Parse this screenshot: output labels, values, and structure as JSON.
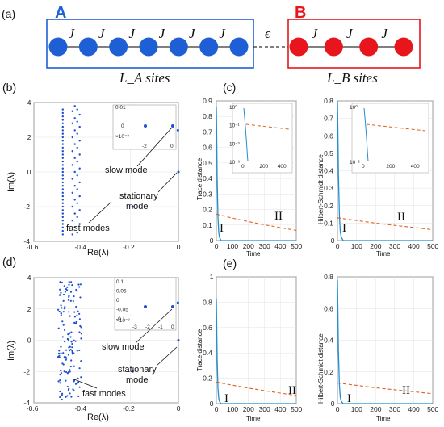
{
  "schematic": {
    "panel_label": "(a)",
    "chain_a": {
      "label": "A",
      "color": "#1f5fd6",
      "sites": 7,
      "coupling": "J",
      "coupling_count": 6,
      "size_label": "L_A sites"
    },
    "chain_b": {
      "label": "B",
      "color": "#e8161c",
      "sites": 4,
      "coupling": "J",
      "coupling_count": 3,
      "size_label": "L_B sites"
    },
    "link_label": "ϵ"
  },
  "chart_data": [
    {
      "id": "b",
      "panel_label": "(b)",
      "type": "scatter",
      "xlabel": "Re(λ)",
      "ylabel": "Im(λ)",
      "xlim": [
        -0.6,
        0
      ],
      "ylim": [
        -4,
        4
      ],
      "xticks": [
        "-0.6",
        "-0.4",
        "-0.2",
        "0"
      ],
      "yticks": [
        "-4",
        "-2",
        "0",
        "2",
        "4"
      ],
      "series": [
        {
          "values_desc": "column1",
          "x": -0.48,
          "y": [
            -3.6,
            -3.4,
            -3.2,
            -3.0,
            -2.8,
            -2.6,
            -2.4,
            -2.2,
            -2.0,
            -1.8,
            -1.6,
            -1.4,
            -1.2,
            -1.0,
            -0.8,
            -0.6,
            -0.4,
            -0.2,
            0.0,
            0.2,
            0.4,
            0.6,
            0.8,
            1.0,
            1.2,
            1.4,
            1.6,
            1.8,
            2.0,
            2.2,
            2.4,
            2.6,
            2.8,
            3.0,
            3.2,
            3.4,
            3.6
          ]
        },
        {
          "values_desc": "column2",
          "points": [
            [
              -0.43,
              3.8
            ],
            [
              -0.42,
              3.6
            ],
            [
              -0.44,
              3.5
            ],
            [
              -0.41,
              3.3
            ],
            [
              -0.43,
              3.1
            ],
            [
              -0.42,
              2.9
            ],
            [
              -0.44,
              2.8
            ],
            [
              -0.41,
              2.6
            ],
            [
              -0.43,
              2.4
            ],
            [
              -0.42,
              2.2
            ],
            [
              -0.44,
              2.0
            ],
            [
              -0.41,
              1.8
            ],
            [
              -0.43,
              1.6
            ],
            [
              -0.42,
              1.4
            ],
            [
              -0.44,
              1.2
            ],
            [
              -0.41,
              1.0
            ],
            [
              -0.43,
              0.8
            ],
            [
              -0.42,
              0.6
            ],
            [
              -0.44,
              0.4
            ],
            [
              -0.41,
              0.2
            ],
            [
              -0.43,
              0.0
            ],
            [
              -0.42,
              -0.2
            ],
            [
              -0.44,
              -0.4
            ],
            [
              -0.41,
              -0.6
            ],
            [
              -0.43,
              -0.8
            ],
            [
              -0.42,
              -1.0
            ],
            [
              -0.44,
              -1.2
            ],
            [
              -0.41,
              -1.4
            ],
            [
              -0.43,
              -1.6
            ],
            [
              -0.42,
              -1.8
            ],
            [
              -0.44,
              -2.0
            ],
            [
              -0.41,
              -2.2
            ],
            [
              -0.43,
              -2.4
            ],
            [
              -0.42,
              -2.6
            ],
            [
              -0.44,
              -2.8
            ],
            [
              -0.41,
              -3.0
            ],
            [
              -0.43,
              -3.2
            ],
            [
              -0.42,
              -3.5
            ],
            [
              -0.44,
              -3.6
            ]
          ]
        },
        {
          "values_desc": "slow/stationary",
          "points": [
            [
              -0.002,
              2.4
            ],
            [
              0,
              0
            ],
            [
              -0.19,
              -2.0
            ],
            [
              -0.19,
              2.0
            ]
          ]
        }
      ],
      "inset": {
        "xlim": [
          -0.003,
          0.0005
        ],
        "ylim": [
          -0.01,
          0.01
        ],
        "xticks": [
          "-2",
          "0"
        ],
        "yticks": [
          "0",
          "0.01"
        ],
        "xscale_label": "×10⁻³",
        "points": [
          [
            -0.002,
            0.0
          ],
          [
            0,
            0.0
          ]
        ]
      },
      "annotations": [
        "slow mode",
        "stationary mode",
        "fast modes"
      ]
    },
    {
      "id": "c-left",
      "panel_label": "(c)",
      "type": "line",
      "xlabel": "Time",
      "ylabel": "Trace distance",
      "xlim": [
        0,
        500
      ],
      "ylim": [
        0,
        0.9
      ],
      "xticks": [
        "0",
        "100",
        "200",
        "300",
        "400",
        "500"
      ],
      "yticks": [
        "0",
        "0.1",
        "0.2",
        "0.3",
        "0.4",
        "0.5",
        "0.6",
        "0.7",
        "0.8",
        "0.9"
      ],
      "series": [
        {
          "label": "I",
          "color": "#1f8fd0",
          "x": [
            0,
            2,
            5,
            10,
            15,
            20,
            30,
            500
          ],
          "y": [
            0.86,
            0.7,
            0.4,
            0.15,
            0.05,
            0.02,
            0.0,
            0.0
          ]
        },
        {
          "label": "II",
          "color": "#e06020",
          "x": [
            0,
            100,
            200,
            300,
            400,
            500
          ],
          "y": [
            0.17,
            0.145,
            0.122,
            0.102,
            0.083,
            0.065
          ]
        }
      ],
      "inset": {
        "yscale": "log",
        "xlim": [
          0,
          500
        ],
        "ylim": [
          0.001,
          1
        ],
        "xticks": [
          "0",
          "200",
          "400"
        ],
        "yticks": [
          "10⁰",
          "10⁻¹",
          "10⁻²",
          "10⁻³"
        ]
      },
      "annotations": [
        "I",
        "II"
      ]
    },
    {
      "id": "c-right",
      "type": "line",
      "xlabel": "Time",
      "ylabel": "Hilbert-Schmidt distance",
      "xlim": [
        0,
        500
      ],
      "ylim": [
        0,
        0.8
      ],
      "xticks": [
        "0",
        "100",
        "200",
        "300",
        "400",
        "500"
      ],
      "yticks": [
        "0",
        "0.1",
        "0.2",
        "0.3",
        "0.4",
        "0.5",
        "0.6",
        "0.7",
        "0.8"
      ],
      "series": [
        {
          "label": "I",
          "color": "#1f8fd0",
          "x": [
            0,
            2,
            5,
            10,
            15,
            20,
            30,
            500
          ],
          "y": [
            0.8,
            0.65,
            0.38,
            0.15,
            0.05,
            0.02,
            0.0,
            0.0
          ]
        },
        {
          "label": "II",
          "color": "#e06020",
          "x": [
            0,
            100,
            200,
            300,
            400,
            500
          ],
          "y": [
            0.13,
            0.115,
            0.1,
            0.087,
            0.075,
            0.062
          ]
        }
      ],
      "inset": {
        "yscale": "log",
        "xlim": [
          0,
          500
        ],
        "ylim": [
          0.005,
          1
        ],
        "xticks": [
          "0",
          "200",
          "400"
        ],
        "yticks": [
          "10⁰",
          "10⁻²"
        ]
      },
      "annotations": [
        "I",
        "II"
      ]
    },
    {
      "id": "d",
      "panel_label": "(d)",
      "type": "scatter",
      "xlabel": "Re(λ)",
      "ylabel": "Im(λ)",
      "xlim": [
        -0.6,
        0
      ],
      "ylim": [
        -4,
        4
      ],
      "xticks": [
        "-0.6",
        "-0.4",
        "-0.2",
        "0"
      ],
      "yticks": [
        "-4",
        "-2",
        "0",
        "2",
        "4"
      ],
      "inset": {
        "xlim": [
          -0.0035,
          0.0005
        ],
        "ylim": [
          -0.1,
          0.1
        ],
        "xticks": [
          "-3",
          "-2",
          "-1",
          "0"
        ],
        "yticks": [
          "-0.1",
          "-0.05",
          "0",
          "0.05",
          "0.1"
        ],
        "xscale_label": "×10⁻³",
        "points": [
          [
            -0.002,
            0.0
          ],
          [
            0,
            0.0
          ]
        ]
      },
      "annotations": [
        "slow mode",
        "stationary mode",
        "fast modes"
      ]
    },
    {
      "id": "e-left",
      "panel_label": "(e)",
      "type": "line",
      "xlabel": "Time",
      "ylabel": "Trace distance",
      "xlim": [
        0,
        500
      ],
      "ylim": [
        0,
        1
      ],
      "xticks": [
        "0",
        "100",
        "200",
        "300",
        "400",
        "500"
      ],
      "yticks": [
        "0",
        "0.2",
        "0.4",
        "0.6",
        "0.8",
        "1"
      ],
      "series": [
        {
          "label": "I",
          "color": "#1f8fd0",
          "x": [
            0,
            2,
            5,
            10,
            15,
            20,
            30,
            500
          ],
          "y": [
            0.83,
            0.65,
            0.35,
            0.12,
            0.04,
            0.015,
            0.0,
            0.0
          ]
        },
        {
          "label": "II",
          "color": "#e06020",
          "x": [
            0,
            100,
            200,
            300,
            400,
            500
          ],
          "y": [
            0.17,
            0.145,
            0.122,
            0.102,
            0.083,
            0.065
          ]
        }
      ],
      "annotations": [
        "I",
        "II"
      ]
    },
    {
      "id": "e-right",
      "type": "line",
      "xlabel": "Time",
      "ylabel": "Hilbert-Schmidt distance",
      "xlim": [
        0,
        500
      ],
      "ylim": [
        0,
        0.8
      ],
      "xticks": [
        "0",
        "100",
        "200",
        "300",
        "400",
        "500"
      ],
      "yticks": [
        "0",
        "0.2",
        "0.4",
        "0.6",
        "0.8"
      ],
      "series": [
        {
          "label": "I",
          "color": "#1f8fd0",
          "x": [
            0,
            2,
            5,
            10,
            15,
            20,
            30,
            500
          ],
          "y": [
            0.78,
            0.6,
            0.33,
            0.12,
            0.04,
            0.015,
            0.0,
            0.0
          ]
        },
        {
          "label": "II",
          "color": "#e06020",
          "x": [
            0,
            100,
            200,
            300,
            400,
            500
          ],
          "y": [
            0.13,
            0.115,
            0.1,
            0.087,
            0.075,
            0.062
          ]
        }
      ],
      "annotations": [
        "I",
        "II"
      ]
    }
  ]
}
